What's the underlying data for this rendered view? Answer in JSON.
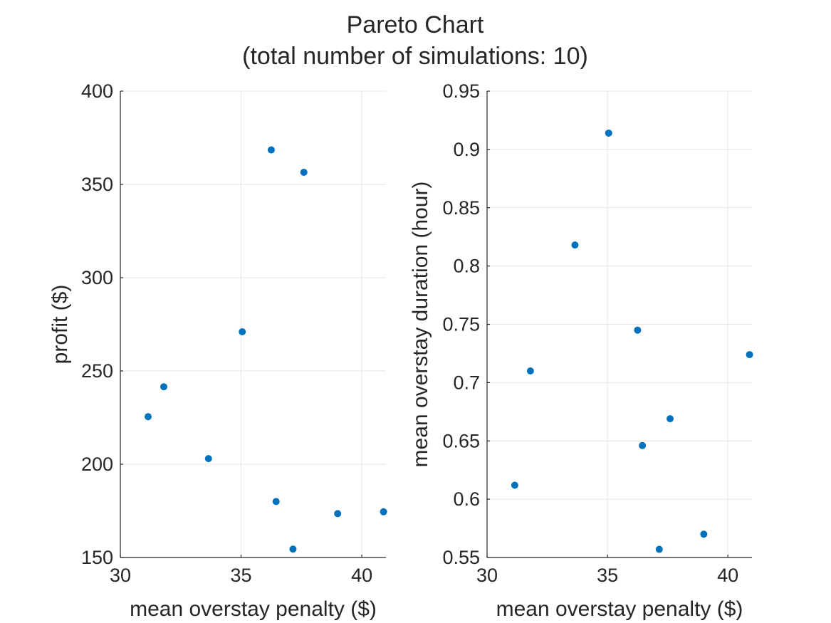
{
  "figure": {
    "title_line1": "Pareto Chart",
    "title_line2": "(total number of simulations: 10)",
    "marker_color": "#0072BD",
    "grid": true
  },
  "chart_data": [
    {
      "type": "scatter",
      "title": "",
      "xlabel": "mean overstay penalty ($)",
      "ylabel": "profit ($)",
      "xlim": [
        30,
        41
      ],
      "ylim": [
        150,
        400
      ],
      "xticks": [
        30,
        35,
        40
      ],
      "yticks": [
        150,
        200,
        250,
        300,
        350,
        400
      ],
      "xtick_labels": [
        "30",
        "35",
        "40"
      ],
      "ytick_labels": [
        "150",
        "200",
        "250",
        "300",
        "350",
        "400"
      ],
      "grid": true,
      "series": [
        {
          "color": "#0072BD",
          "x": [
            31.15,
            31.8,
            33.65,
            35.05,
            36.25,
            36.45,
            37.15,
            37.6,
            39.0,
            40.9
          ],
          "y": [
            225.5,
            241.5,
            203,
            271,
            368.5,
            180,
            154.5,
            356.5,
            173.5,
            174.5
          ]
        }
      ]
    },
    {
      "type": "scatter",
      "title": "",
      "xlabel": "mean overstay penalty ($)",
      "ylabel": "mean overstay duration (hour)",
      "xlim": [
        30,
        41
      ],
      "ylim": [
        0.55,
        0.95
      ],
      "xticks": [
        30,
        35,
        40
      ],
      "yticks": [
        0.55,
        0.6,
        0.65,
        0.7,
        0.75,
        0.8,
        0.85,
        0.9,
        0.95
      ],
      "xtick_labels": [
        "30",
        "35",
        "40"
      ],
      "ytick_labels": [
        "0.55",
        "0.6",
        "0.65",
        "0.7",
        "0.75",
        "0.8",
        "0.85",
        "0.9",
        "0.95"
      ],
      "grid": true,
      "series": [
        {
          "color": "#0072BD",
          "x": [
            31.15,
            31.8,
            33.65,
            35.05,
            36.25,
            36.45,
            37.15,
            37.6,
            39.0,
            40.9
          ],
          "y": [
            0.612,
            0.71,
            0.818,
            0.914,
            0.745,
            0.646,
            0.557,
            0.669,
            0.57,
            0.724
          ]
        }
      ]
    }
  ]
}
